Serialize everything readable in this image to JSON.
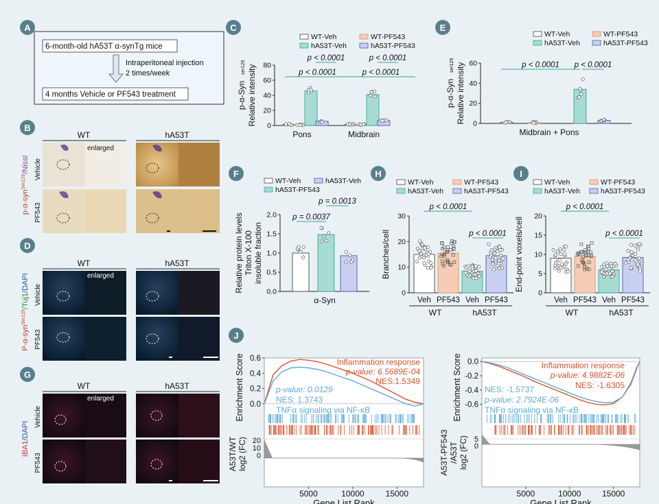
{
  "panel_labels": {
    "A": "A",
    "B": "B",
    "C": "C",
    "D": "D",
    "E": "E",
    "F": "F",
    "G": "G",
    "H": "H",
    "I": "I",
    "J": "J"
  },
  "panelA": {
    "step1": "6-month-old hA53T α-synTg mice",
    "arrow_line1": "Intraperitoneal injection",
    "arrow_line2": "2 times/week",
    "step2": "4 months Vehicle or PF543 treatment"
  },
  "panelB": {
    "wt": "WT",
    "ha53t": "hA53T",
    "enlarged": "enlarged",
    "vehicle": "Vehicle",
    "pf543": "PF543",
    "ylabel_a": "p-α-syn",
    "ylabel_sup": "Ser129",
    "ylabel_b": "/Nissl"
  },
  "panelD": {
    "wt": "WT",
    "ha53t": "hA53T",
    "enlarged": "enlarged",
    "vehicle": "Vehicle",
    "pf543": "PF543",
    "ylabel_a": "P-α-syn",
    "ylabel_sup": "Ser129",
    "ylabel_b": "/Tuj1",
    "ylabel_c": "/DAPI"
  },
  "panelG": {
    "wt": "WT",
    "ha53t": "hA53T",
    "enlarged": "enlarged",
    "vehicle": "Vehicle",
    "pf543": "PF543",
    "ylabel_a": "IBA1",
    "ylabel_b": "/DAPI"
  },
  "colors": {
    "wt_veh": "#ffffff",
    "wt_pf": "#f6cdb4",
    "ha_veh": "#a6dcd4",
    "ha_pf": "#c9d0ef",
    "red": "#d9532c",
    "blue": "#5ea9d9"
  },
  "chart_data": [
    {
      "id": "C",
      "type": "bar",
      "title": "",
      "ylabel": "p-α-Syn Ser129 Relative intensity",
      "ylabel_main": "p-α-Syn",
      "ylabel_sup": "ser129",
      "ylabel_2": "Relative intensity",
      "ylim": [
        0,
        80
      ],
      "yticks": [
        "0",
        "20",
        "40",
        "60",
        "80"
      ],
      "ytick_values": [
        0,
        20,
        40,
        60,
        80
      ],
      "groups": [
        "Pons",
        "Midbrain"
      ],
      "legend": [
        "WT-Veh",
        "WT-PF543",
        "hA53T-Veh",
        "hA53T-PF543"
      ],
      "series": [
        {
          "name": "WT-Veh",
          "values": [
            1.5,
            1.5
          ]
        },
        {
          "name": "WT-PF543",
          "values": [
            1.2,
            1.2
          ]
        },
        {
          "name": "hA53T-Veh",
          "values": [
            46,
            41
          ]
        },
        {
          "name": "hA53T-PF543",
          "values": [
            5.5,
            6.5
          ]
        }
      ],
      "pvalues": [
        "p < 0.0001",
        "p < 0.0001",
        "p < 0.0001",
        "p < 0.0001"
      ]
    },
    {
      "id": "E",
      "type": "bar",
      "ylabel_main": "p-α-Syn",
      "ylabel_sup": "ser129",
      "ylabel_2": "Relative intensity",
      "ylim": [
        0,
        60
      ],
      "yticks": [
        "0",
        "20",
        "40",
        "60"
      ],
      "ytick_values": [
        0,
        20,
        40,
        60
      ],
      "groups": [
        "Midbrain + Pons"
      ],
      "legend": [
        "WT-Veh",
        "WT-PF543",
        "hA53T-Veh",
        "hA53T-PF543"
      ],
      "series": [
        {
          "name": "WT-Veh",
          "values": [
            1
          ]
        },
        {
          "name": "WT-PF543",
          "values": [
            1
          ]
        },
        {
          "name": "hA53T-Veh",
          "values": [
            34
          ]
        },
        {
          "name": "hA53T-PF543",
          "values": [
            3
          ]
        }
      ],
      "pvalues": [
        "p < 0.0001",
        "p < 0.0001"
      ]
    },
    {
      "id": "F",
      "type": "bar",
      "ylabel": "Relative protein levels Triton X-100 insoluble fraction",
      "ylabel_1": "Relative protein levels",
      "ylabel_2": "Triton X-100",
      "ylabel_3": "insoluble fraction",
      "ylim": [
        0,
        2.0
      ],
      "yticks": [
        "0.0",
        "0.5",
        "1.0",
        "1.5",
        "2.0"
      ],
      "ytick_values": [
        0,
        0.5,
        1.0,
        1.5,
        2.0
      ],
      "groups": [
        "α-Syn"
      ],
      "legend": [
        "WT-Veh",
        "hA53T-Veh",
        "hA53T-PF543"
      ],
      "series": [
        {
          "name": "WT-Veh",
          "values": [
            1.0
          ]
        },
        {
          "name": "hA53T-Veh",
          "values": [
            1.48
          ]
        },
        {
          "name": "hA53T-PF543",
          "values": [
            0.93
          ]
        }
      ],
      "pvalues": [
        "p = 0.0037",
        "p = 0.0013"
      ]
    },
    {
      "id": "H",
      "type": "bar",
      "ylabel": "Branches/cell",
      "ylim": [
        0,
        30
      ],
      "yticks": [
        "0",
        "10",
        "20",
        "30"
      ],
      "ytick_values": [
        0,
        10,
        20,
        30
      ],
      "categories": [
        "Veh",
        "PF543",
        "Veh",
        "PF543"
      ],
      "group_labels": [
        "WT",
        "hA53T"
      ],
      "legend": [
        "WT-Veh",
        "WT-PF543",
        "hA53T-Veh",
        "hA53T-PF543"
      ],
      "values": [
        15,
        15.5,
        8.5,
        14.5
      ],
      "pvalues": [
        "p < 0.0001",
        "p < 0.0001"
      ]
    },
    {
      "id": "I",
      "type": "bar",
      "ylabel": "End-point voxels/cell",
      "ylim": [
        0,
        20
      ],
      "yticks": [
        "0",
        "5",
        "10",
        "15",
        "20"
      ],
      "ytick_values": [
        0,
        5,
        10,
        15,
        20
      ],
      "categories": [
        "Veh",
        "PF543",
        "Veh",
        "PF543"
      ],
      "group_labels": [
        "WT",
        "hA53T"
      ],
      "legend": [
        "WT-Veh",
        "WT-PF543",
        "hA53T-Veh",
        "hA53T-PF543"
      ],
      "values": [
        9,
        9.5,
        6,
        9.2
      ],
      "pvalues": [
        "p < 0.0001",
        "p < 0.0001"
      ]
    },
    {
      "id": "J1",
      "type": "line",
      "xlabel": "Gene List Rank",
      "ylabel": "Enrichment Score",
      "ylabel2_a": "A53T/WT",
      "ylabel2_b": "log2 (FC)",
      "ylim": [
        -0.1,
        0.6
      ],
      "yticks": [
        "0.6",
        "0.4",
        "0.2",
        "0.0"
      ],
      "ytick_values": [
        0.6,
        0.4,
        0.2,
        0.0
      ],
      "xlim": [
        0,
        18000
      ],
      "xticks": [
        "5000",
        "10000",
        "15000"
      ],
      "xtick_values": [
        5000,
        10000,
        15000
      ],
      "fc_ticks": [
        "20",
        "10",
        "0"
      ],
      "series": [
        {
          "name": "Inflammation response",
          "color": "red",
          "pvalue": "p-value: 6.5689E-04",
          "nes": "NES:1.5349",
          "x": [
            0,
            1000,
            2000,
            3000,
            4000,
            5000,
            6000,
            7000,
            8000,
            9000,
            10000,
            11000,
            12000,
            13000,
            14000,
            15000,
            16000,
            17000,
            18000
          ],
          "y": [
            0,
            0.38,
            0.5,
            0.56,
            0.58,
            0.57,
            0.55,
            0.52,
            0.48,
            0.44,
            0.4,
            0.35,
            0.3,
            0.24,
            0.18,
            0.12,
            0.06,
            0.02,
            0.0
          ]
        },
        {
          "name": "TNFα signaling via NF-κB",
          "color": "blue",
          "pvalue": "p-value: 0.0129",
          "nes": "NES: 1.3743",
          "x": [
            0,
            1000,
            2000,
            3000,
            4000,
            5000,
            6000,
            7000,
            8000,
            9000,
            10000,
            11000,
            12000,
            13000,
            14000,
            15000,
            16000,
            17000,
            18000
          ],
          "y": [
            0,
            0.3,
            0.42,
            0.47,
            0.48,
            0.47,
            0.45,
            0.42,
            0.38,
            0.34,
            0.3,
            0.25,
            0.2,
            0.15,
            0.1,
            0.05,
            0.0,
            -0.03,
            0.0
          ]
        }
      ]
    },
    {
      "id": "J2",
      "type": "line",
      "xlabel": "Gene List Rank",
      "ylabel": "Enrichment Score",
      "ylabel2_a": "A53T-PF543",
      "ylabel2_b": "/A53T",
      "ylabel2_c": "log2 (FC)",
      "ylim": [
        -0.7,
        0.05
      ],
      "yticks": [
        "0.0",
        "-0.2",
        "-0.4",
        "-0.6"
      ],
      "ytick_values": [
        0.0,
        -0.2,
        -0.4,
        -0.6
      ],
      "xlim": [
        0,
        18000
      ],
      "xticks": [
        "5000",
        "10000",
        "15000"
      ],
      "xtick_values": [
        5000,
        10000,
        15000
      ],
      "fc_ticks": [
        "5",
        "0"
      ],
      "series": [
        {
          "name": "Inflammation response",
          "color": "red",
          "pvalue": "p-value: 4.9882E-06",
          "nes": "NES: -1.6305",
          "x": [
            0,
            1000,
            2000,
            3000,
            4000,
            5000,
            6000,
            7000,
            8000,
            9000,
            10000,
            11000,
            12000,
            13000,
            14000,
            15000,
            16000,
            17000,
            17600,
            18000
          ],
          "y": [
            0,
            -0.03,
            -0.07,
            -0.12,
            -0.17,
            -0.22,
            -0.28,
            -0.33,
            -0.38,
            -0.43,
            -0.48,
            -0.53,
            -0.57,
            -0.6,
            -0.61,
            -0.59,
            -0.5,
            -0.3,
            -0.1,
            0.0
          ]
        },
        {
          "name": "TNFα signaling via NF-κB",
          "color": "blue",
          "pvalue": "p-value: 2.7924E-06",
          "nes": "NES: -1.5737",
          "x": [
            0,
            1000,
            2000,
            3000,
            4000,
            5000,
            6000,
            7000,
            8000,
            9000,
            10000,
            11000,
            12000,
            13000,
            14000,
            15000,
            16000,
            17000,
            17600,
            18000
          ],
          "y": [
            0,
            -0.02,
            -0.05,
            -0.09,
            -0.14,
            -0.19,
            -0.24,
            -0.29,
            -0.34,
            -0.39,
            -0.44,
            -0.49,
            -0.53,
            -0.56,
            -0.58,
            -0.57,
            -0.5,
            -0.32,
            -0.12,
            0.0
          ]
        }
      ]
    }
  ]
}
